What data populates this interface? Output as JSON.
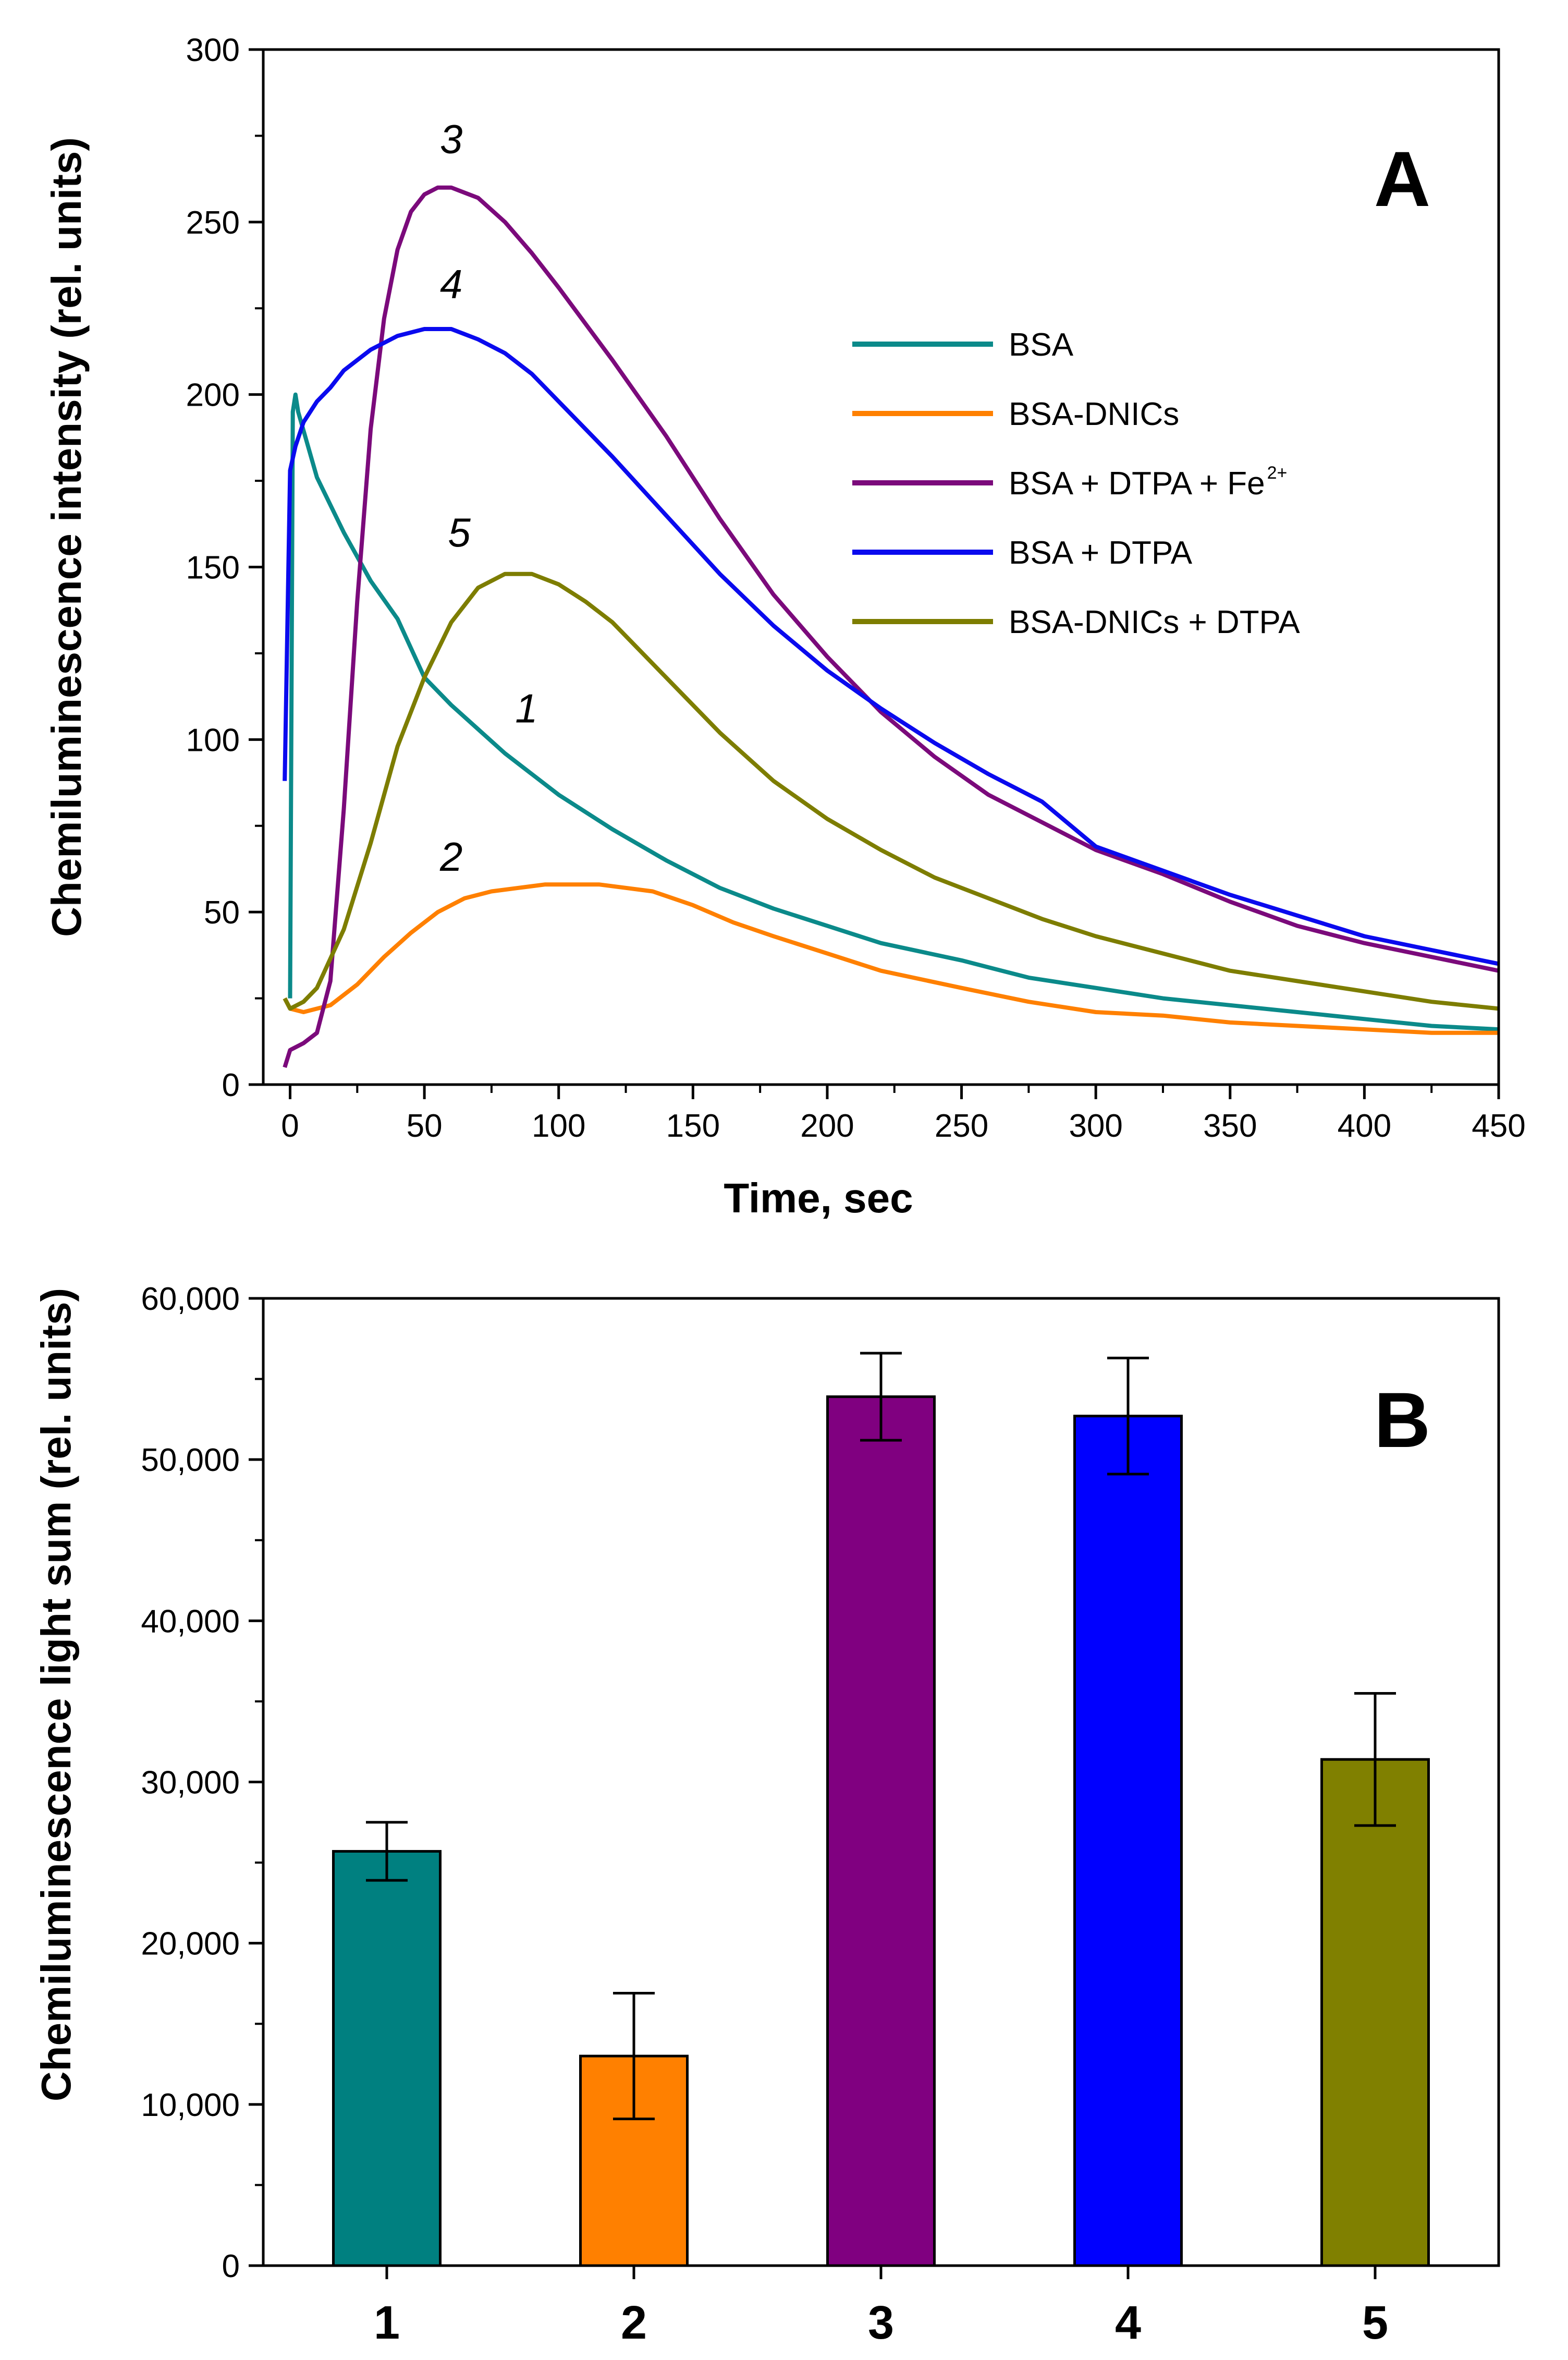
{
  "chart_data": [
    {
      "type": "line",
      "panel": "A",
      "xlabel": "Time, sec",
      "ylabel": "Chemiluminescence intensity (rel. units)",
      "xlim": [
        -10,
        450
      ],
      "ylim": [
        0,
        300
      ],
      "xticks": [
        0,
        50,
        100,
        150,
        200,
        250,
        300,
        350,
        400,
        450
      ],
      "yticks": [
        0,
        50,
        100,
        150,
        200,
        250,
        300
      ],
      "legend_position": "right-middle",
      "series": [
        {
          "name": "BSA",
          "label": "1",
          "color": "#0b8a8a",
          "points": [
            [
              0,
              25
            ],
            [
              1,
              195
            ],
            [
              2,
              200
            ],
            [
              3,
              195
            ],
            [
              10,
              176
            ],
            [
              20,
              160
            ],
            [
              30,
              146
            ],
            [
              40,
              135
            ],
            [
              50,
              118
            ],
            [
              60,
              110
            ],
            [
              70,
              103
            ],
            [
              80,
              96
            ],
            [
              90,
              90
            ],
            [
              100,
              84
            ],
            [
              120,
              74
            ],
            [
              140,
              65
            ],
            [
              160,
              57
            ],
            [
              180,
              51
            ],
            [
              200,
              46
            ],
            [
              220,
              41
            ],
            [
              250,
              36
            ],
            [
              275,
              31
            ],
            [
              300,
              28
            ],
            [
              325,
              25
            ],
            [
              350,
              23
            ],
            [
              375,
              21
            ],
            [
              400,
              19
            ],
            [
              425,
              17
            ],
            [
              450,
              16
            ]
          ],
          "label_at": [
            88,
            105
          ]
        },
        {
          "name": "BSA-DNICs",
          "label": "2",
          "color": "#ff8000",
          "points": [
            [
              -2,
              25
            ],
            [
              0,
              22
            ],
            [
              5,
              21
            ],
            [
              15,
              23
            ],
            [
              25,
              29
            ],
            [
              35,
              37
            ],
            [
              45,
              44
            ],
            [
              55,
              50
            ],
            [
              65,
              54
            ],
            [
              75,
              56
            ],
            [
              85,
              57
            ],
            [
              95,
              58
            ],
            [
              105,
              58
            ],
            [
              115,
              58
            ],
            [
              125,
              57
            ],
            [
              135,
              56
            ],
            [
              150,
              52
            ],
            [
              165,
              47
            ],
            [
              180,
              43
            ],
            [
              200,
              38
            ],
            [
              220,
              33
            ],
            [
              250,
              28
            ],
            [
              275,
              24
            ],
            [
              300,
              21
            ],
            [
              325,
              20
            ],
            [
              350,
              18
            ],
            [
              375,
              17
            ],
            [
              400,
              16
            ],
            [
              425,
              15
            ],
            [
              450,
              15
            ]
          ],
          "label_at": [
            60,
            62
          ]
        },
        {
          "name": "BSA + DTPA + Fe",
          "name_superscript": "2+",
          "label": "3",
          "color": "#7b0a7b",
          "points": [
            [
              -2,
              5
            ],
            [
              0,
              10
            ],
            [
              5,
              12
            ],
            [
              10,
              15
            ],
            [
              15,
              30
            ],
            [
              20,
              80
            ],
            [
              25,
              140
            ],
            [
              30,
              190
            ],
            [
              35,
              222
            ],
            [
              40,
              242
            ],
            [
              45,
              253
            ],
            [
              50,
              258
            ],
            [
              55,
              260
            ],
            [
              60,
              260
            ],
            [
              70,
              257
            ],
            [
              80,
              250
            ],
            [
              90,
              241
            ],
            [
              100,
              231
            ],
            [
              120,
              210
            ],
            [
              140,
              188
            ],
            [
              160,
              164
            ],
            [
              180,
              142
            ],
            [
              200,
              124
            ],
            [
              220,
              108
            ],
            [
              240,
              95
            ],
            [
              260,
              84
            ],
            [
              280,
              76
            ],
            [
              300,
              68
            ],
            [
              325,
              61
            ],
            [
              350,
              53
            ],
            [
              375,
              46
            ],
            [
              400,
              41
            ],
            [
              425,
              37
            ],
            [
              450,
              33
            ]
          ],
          "label_at": [
            60,
            270
          ]
        },
        {
          "name": "BSA + DTPA",
          "label": "4",
          "color": "#0a0aee",
          "points": [
            [
              -2,
              88
            ],
            [
              0,
              178
            ],
            [
              2,
              185
            ],
            [
              5,
              192
            ],
            [
              10,
              198
            ],
            [
              15,
              202
            ],
            [
              20,
              207
            ],
            [
              30,
              213
            ],
            [
              40,
              217
            ],
            [
              50,
              219
            ],
            [
              60,
              219
            ],
            [
              70,
              216
            ],
            [
              80,
              212
            ],
            [
              90,
              206
            ],
            [
              100,
              198
            ],
            [
              120,
              182
            ],
            [
              140,
              165
            ],
            [
              160,
              148
            ],
            [
              180,
              133
            ],
            [
              200,
              120
            ],
            [
              220,
              109
            ],
            [
              240,
              99
            ],
            [
              260,
              90
            ],
            [
              280,
              82
            ],
            [
              300,
              69
            ],
            [
              325,
              62
            ],
            [
              350,
              55
            ],
            [
              375,
              49
            ],
            [
              400,
              43
            ],
            [
              425,
              39
            ],
            [
              450,
              35
            ]
          ],
          "label_at": [
            60,
            228
          ]
        },
        {
          "name": "BSA-DNICs + DTPA",
          "label": "5",
          "color": "#7d7d00",
          "points": [
            [
              -2,
              25
            ],
            [
              0,
              22
            ],
            [
              5,
              24
            ],
            [
              10,
              28
            ],
            [
              20,
              45
            ],
            [
              30,
              70
            ],
            [
              40,
              98
            ],
            [
              50,
              118
            ],
            [
              60,
              134
            ],
            [
              70,
              144
            ],
            [
              80,
              148
            ],
            [
              90,
              148
            ],
            [
              100,
              145
            ],
            [
              110,
              140
            ],
            [
              120,
              134
            ],
            [
              130,
              126
            ],
            [
              140,
              118
            ],
            [
              160,
              102
            ],
            [
              180,
              88
            ],
            [
              200,
              77
            ],
            [
              220,
              68
            ],
            [
              240,
              60
            ],
            [
              260,
              54
            ],
            [
              280,
              48
            ],
            [
              300,
              43
            ],
            [
              325,
              38
            ],
            [
              350,
              33
            ],
            [
              375,
              30
            ],
            [
              400,
              27
            ],
            [
              425,
              24
            ],
            [
              450,
              22
            ]
          ],
          "label_at": [
            63,
            156
          ]
        }
      ],
      "legend": [
        {
          "text": "BSA",
          "series": 0
        },
        {
          "text": "BSA-DNICs",
          "series": 1
        },
        {
          "text": "BSA + DTPA + Fe",
          "sup": "2+",
          "series": 2
        },
        {
          "text": "BSA + DTPA",
          "series": 3
        },
        {
          "text": "BSA-DNICs + DTPA",
          "series": 4
        }
      ]
    },
    {
      "type": "bar",
      "panel": "B",
      "xlabel": "",
      "ylabel": "Chemiluminescence light sum (rel. units)",
      "ylim": [
        0,
        60000
      ],
      "yticks": [
        0,
        10000,
        20000,
        30000,
        40000,
        50000,
        60000
      ],
      "ytick_labels": [
        "0",
        "10,000",
        "20,000",
        "30,000",
        "40,000",
        "50,000",
        "60,000"
      ],
      "categories": [
        "1",
        "2",
        "3",
        "4",
        "5"
      ],
      "values": [
        25700,
        13000,
        53900,
        52700,
        31400
      ],
      "errors": [
        1800,
        3900,
        2700,
        3600,
        4100
      ],
      "colors": [
        "#008080",
        "#ff8000",
        "#800080",
        "#0000ff",
        "#808000"
      ]
    }
  ]
}
